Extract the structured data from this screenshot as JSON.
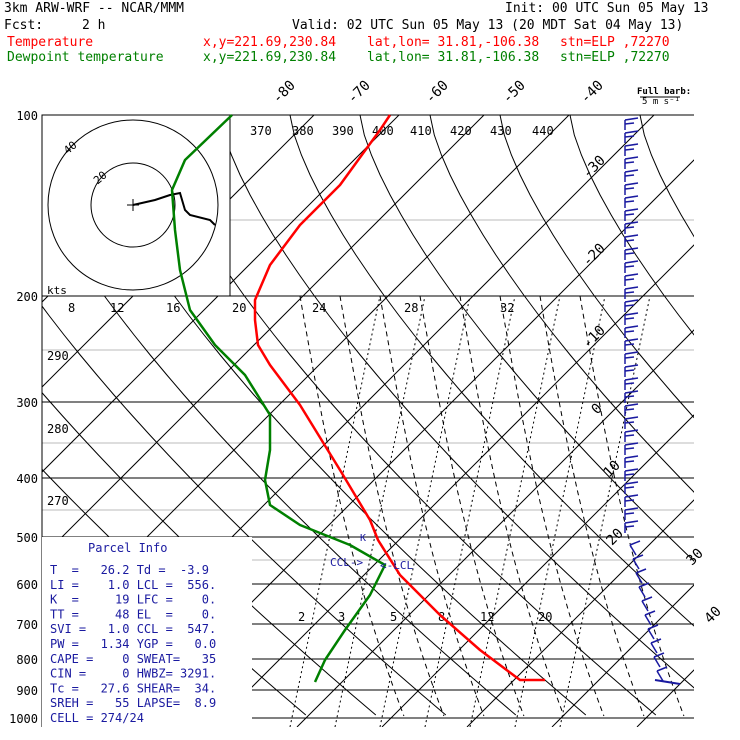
{
  "header": {
    "model": "3km ARW-WRF -- NCAR/MMM",
    "init": "Init: 00 UTC Sun 05 May 13",
    "fcst_label": "Fcst:",
    "fcst_value": "2 h",
    "valid": "Valid: 02 UTC Sun 05 May 13 (20 MDT Sat 04 May 13)",
    "temp_label": "Temperature",
    "dewp_label": "Dewpoint temperature",
    "xy": "x,y=221.69,230.84",
    "latlon": "lat,lon= 31.81,-106.38",
    "stn": "stn=ELP ,72270"
  },
  "colors": {
    "temperature": "#ff0000",
    "dewpoint": "#008000",
    "barbs": "#1a1aa0",
    "black": "#000000"
  },
  "chart_data": {
    "type": "line",
    "title": "",
    "xlabel": "",
    "ylabel": "",
    "y_scale": "log-pressure",
    "ylim": [
      1000,
      100
    ],
    "pressure_ticks": [
      "100",
      "200",
      "300",
      "400",
      "500",
      "600",
      "700",
      "800",
      "900",
      "1000"
    ],
    "isotherm_labels": [
      "-80",
      "-70",
      "-60",
      "-50",
      "-40",
      "-30",
      "-20",
      "-10",
      "0",
      "10",
      "20",
      "30",
      "40"
    ],
    "theta_labels": [
      "370",
      "380",
      "390",
      "400",
      "410",
      "420",
      "430",
      "440",
      "290",
      "280",
      "270"
    ],
    "mixing_ratio_labels_top": [
      "8",
      "12",
      "16",
      "20",
      "24",
      "28",
      "32"
    ],
    "mixing_ratio_labels_bottom": [
      "2",
      "3",
      "5",
      "8",
      "12",
      "20"
    ],
    "series": [
      {
        "name": "Temperature",
        "color": "#ff0000",
        "points": [
          [
            390,
            115
          ],
          [
            380,
            130
          ],
          [
            340,
            185
          ],
          [
            300,
            225
          ],
          [
            270,
            265
          ],
          [
            255,
            300
          ],
          [
            255,
            320
          ],
          [
            258,
            345
          ],
          [
            270,
            365
          ],
          [
            300,
            405
          ],
          [
            340,
            470
          ],
          [
            370,
            520
          ],
          [
            378,
            540
          ],
          [
            400,
            575
          ],
          [
            440,
            615
          ],
          [
            480,
            650
          ],
          [
            520,
            680
          ],
          [
            545,
            680
          ]
        ]
      },
      {
        "name": "Dewpoint temperature",
        "color": "#008000",
        "points": [
          [
            232,
            115
          ],
          [
            185,
            160
          ],
          [
            172,
            190
          ],
          [
            175,
            230
          ],
          [
            180,
            270
          ],
          [
            190,
            310
          ],
          [
            215,
            345
          ],
          [
            245,
            375
          ],
          [
            270,
            415
          ],
          [
            270,
            450
          ],
          [
            265,
            480
          ],
          [
            270,
            505
          ],
          [
            300,
            525
          ],
          [
            350,
            545
          ],
          [
            385,
            565
          ],
          [
            370,
            595
          ],
          [
            345,
            630
          ],
          [
            325,
            660
          ],
          [
            315,
            682
          ]
        ]
      }
    ],
    "hodograph": {
      "ring_labels": [
        "20",
        "40"
      ],
      "units_label": "kts",
      "path": [
        [
          133,
          205
        ],
        [
          155,
          200
        ],
        [
          170,
          195
        ],
        [
          180,
          193
        ],
        [
          185,
          210
        ],
        [
          190,
          215
        ],
        [
          210,
          220
        ],
        [
          215,
          225
        ]
      ]
    },
    "annotations": {
      "ccl_label": "CCL->",
      "lcl_label": "<-LCL",
      "full_barb_label": "Full barb:",
      "full_barb_units": "5 m s⁻¹"
    }
  },
  "parcel_info": {
    "title": "Parcel Info",
    "lines": [
      "T  =   26.2 Td =  -3.9",
      "LI =    1.0 LCL =  556.",
      "K  =     19 LFC =    0.",
      "TT =     48 EL  =    0.",
      "SVI =   1.0 CCL =  547.",
      "PW =   1.34 YGP =   0.0",
      "CAPE =    0 SWEAT=   35",
      "CIN =     0 HWBZ= 3291.",
      "Tc =   27.6 SHEAR=  34.",
      "SREH =   55 LAPSE=  8.9",
      "CELL = 274/24"
    ]
  }
}
